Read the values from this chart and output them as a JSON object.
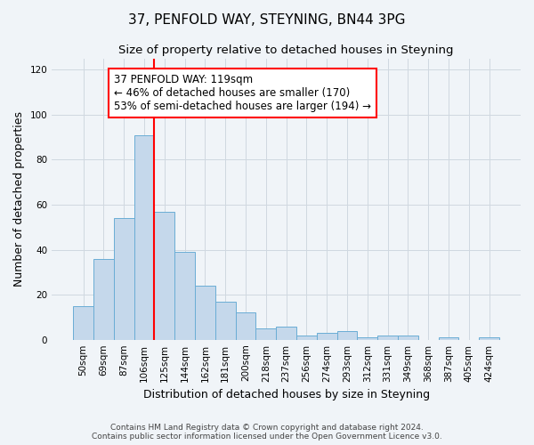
{
  "title": "37, PENFOLD WAY, STEYNING, BN44 3PG",
  "subtitle": "Size of property relative to detached houses in Steyning",
  "xlabel": "Distribution of detached houses by size in Steyning",
  "ylabel": "Number of detached properties",
  "bar_labels": [
    "50sqm",
    "69sqm",
    "87sqm",
    "106sqm",
    "125sqm",
    "144sqm",
    "162sqm",
    "181sqm",
    "200sqm",
    "218sqm",
    "237sqm",
    "256sqm",
    "274sqm",
    "293sqm",
    "312sqm",
    "331sqm",
    "349sqm",
    "368sqm",
    "387sqm",
    "405sqm",
    "424sqm"
  ],
  "bar_values": [
    15,
    36,
    54,
    91,
    57,
    39,
    24,
    17,
    12,
    5,
    6,
    2,
    3,
    4,
    1,
    2,
    2,
    0,
    1,
    0,
    1
  ],
  "bar_color": "#c5d8eb",
  "bar_edge_color": "#6aadd5",
  "grid_color": "#d0d8e0",
  "background_color": "#f0f4f8",
  "annotation_line_color": "red",
  "annotation_text": "37 PENFOLD WAY: 119sqm\n← 46% of detached houses are smaller (170)\n53% of semi-detached houses are larger (194) →",
  "annotation_box_color": "white",
  "annotation_box_edge": "red",
  "ylim": [
    0,
    125
  ],
  "yticks": [
    0,
    20,
    40,
    60,
    80,
    100,
    120
  ],
  "footnote": "Contains HM Land Registry data © Crown copyright and database right 2024.\nContains public sector information licensed under the Open Government Licence v3.0.",
  "title_fontsize": 11,
  "subtitle_fontsize": 9.5,
  "axis_label_fontsize": 9,
  "tick_fontsize": 7.5,
  "annotation_fontsize": 8.5,
  "footnote_fontsize": 6.5
}
